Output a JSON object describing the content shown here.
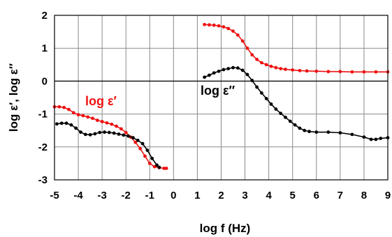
{
  "chart_data": {
    "type": "scatter",
    "title": "",
    "xlabel": "log f (Hz)",
    "ylabel": "log ε′, log ε″",
    "xlim": [
      -5,
      9
    ],
    "ylim": [
      -3,
      2
    ],
    "xticks": [
      "-5",
      "-4",
      "-3",
      "-2",
      "-1",
      "0",
      "1",
      "2",
      "3",
      "4",
      "5",
      "6",
      "7",
      "8",
      "9"
    ],
    "yticks": [
      "-3",
      "-2",
      "-1",
      "0",
      "1",
      "2"
    ],
    "grid": true,
    "annotations": [
      {
        "text": "log ε′",
        "color": "#ee1111"
      },
      {
        "text": "log ε″",
        "color": "#000000"
      }
    ],
    "series": [
      {
        "color": "#ee1111",
        "segments": [
          [
            [
              -5.0,
              -0.78
            ],
            [
              -4.8,
              -0.78
            ],
            [
              -4.6,
              -0.8
            ],
            [
              -4.4,
              -0.86
            ],
            [
              -4.2,
              -0.96
            ],
            [
              -4.0,
              -1.02
            ],
            [
              -3.8,
              -1.05
            ],
            [
              -3.6,
              -1.09
            ],
            [
              -3.4,
              -1.13
            ],
            [
              -3.2,
              -1.19
            ],
            [
              -3.0,
              -1.23
            ],
            [
              -2.8,
              -1.27
            ],
            [
              -2.6,
              -1.31
            ],
            [
              -2.4,
              -1.37
            ],
            [
              -2.2,
              -1.45
            ],
            [
              -2.0,
              -1.56
            ],
            [
              -1.8,
              -1.7
            ],
            [
              -1.6,
              -1.86
            ],
            [
              -1.4,
              -2.05
            ],
            [
              -1.2,
              -2.28
            ],
            [
              -1.0,
              -2.5
            ],
            [
              -0.8,
              -2.6
            ],
            [
              -0.6,
              -2.63
            ],
            [
              -0.4,
              -2.65
            ],
            [
              -0.3,
              -2.65
            ]
          ],
          [
            [
              1.3,
              1.72
            ],
            [
              1.5,
              1.71
            ],
            [
              1.7,
              1.7
            ],
            [
              1.9,
              1.68
            ],
            [
              2.1,
              1.65
            ],
            [
              2.3,
              1.6
            ],
            [
              2.5,
              1.52
            ],
            [
              2.7,
              1.4
            ],
            [
              2.9,
              1.22
            ],
            [
              3.1,
              1.0
            ],
            [
              3.3,
              0.8
            ],
            [
              3.5,
              0.66
            ],
            [
              3.7,
              0.56
            ],
            [
              3.9,
              0.5
            ],
            [
              4.1,
              0.45
            ],
            [
              4.3,
              0.41
            ],
            [
              4.5,
              0.38
            ],
            [
              4.7,
              0.36
            ],
            [
              5.0,
              0.34
            ],
            [
              5.3,
              0.32
            ],
            [
              5.6,
              0.31
            ],
            [
              6.0,
              0.3
            ],
            [
              6.5,
              0.29
            ],
            [
              7.0,
              0.29
            ],
            [
              7.5,
              0.28
            ],
            [
              8.0,
              0.28
            ],
            [
              8.5,
              0.28
            ],
            [
              9.0,
              0.28
            ]
          ]
        ]
      },
      {
        "color": "#000000",
        "segments": [
          [
            [
              -4.9,
              -1.3
            ],
            [
              -4.7,
              -1.28
            ],
            [
              -4.5,
              -1.28
            ],
            [
              -4.3,
              -1.33
            ],
            [
              -4.1,
              -1.43
            ],
            [
              -3.9,
              -1.55
            ],
            [
              -3.7,
              -1.62
            ],
            [
              -3.5,
              -1.63
            ],
            [
              -3.3,
              -1.6
            ],
            [
              -3.1,
              -1.56
            ],
            [
              -2.9,
              -1.55
            ],
            [
              -2.7,
              -1.56
            ],
            [
              -2.5,
              -1.58
            ],
            [
              -2.3,
              -1.61
            ],
            [
              -2.1,
              -1.64
            ],
            [
              -1.9,
              -1.67
            ],
            [
              -1.7,
              -1.72
            ],
            [
              -1.5,
              -1.8
            ],
            [
              -1.3,
              -1.9
            ],
            [
              -1.1,
              -2.1
            ],
            [
              -0.9,
              -2.35
            ],
            [
              -0.7,
              -2.55
            ],
            [
              -0.6,
              -2.62
            ]
          ],
          [
            [
              1.3,
              0.12
            ],
            [
              1.5,
              0.18
            ],
            [
              1.7,
              0.25
            ],
            [
              1.9,
              0.3
            ],
            [
              2.1,
              0.35
            ],
            [
              2.3,
              0.38
            ],
            [
              2.5,
              0.41
            ],
            [
              2.7,
              0.4
            ],
            [
              2.9,
              0.33
            ],
            [
              3.1,
              0.2
            ],
            [
              3.3,
              0.02
            ],
            [
              3.5,
              -0.18
            ],
            [
              3.7,
              -0.36
            ],
            [
              3.9,
              -0.53
            ],
            [
              4.1,
              -0.7
            ],
            [
              4.3,
              -0.85
            ],
            [
              4.5,
              -0.98
            ],
            [
              4.7,
              -1.1
            ],
            [
              4.9,
              -1.22
            ],
            [
              5.1,
              -1.33
            ],
            [
              5.3,
              -1.43
            ],
            [
              5.5,
              -1.5
            ],
            [
              5.7,
              -1.53
            ],
            [
              6.0,
              -1.55
            ],
            [
              6.5,
              -1.55
            ],
            [
              7.0,
              -1.57
            ],
            [
              7.5,
              -1.62
            ],
            [
              8.0,
              -1.7
            ],
            [
              8.3,
              -1.77
            ],
            [
              8.5,
              -1.77
            ],
            [
              8.7,
              -1.74
            ],
            [
              9.0,
              -1.72
            ]
          ]
        ]
      }
    ]
  }
}
